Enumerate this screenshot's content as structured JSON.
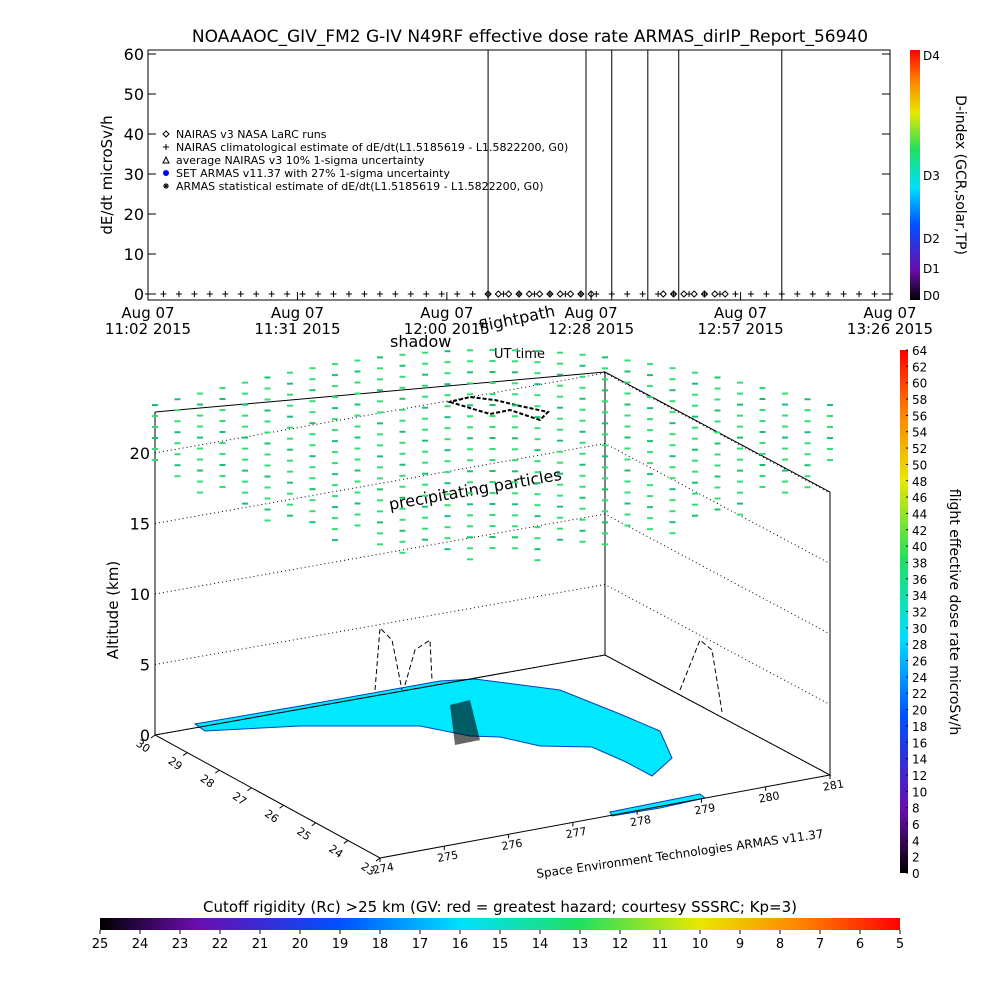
{
  "chart_data": [
    {
      "type": "line",
      "title": "NOAAAOC_GIV_FM2 G-IV    N49RF  effective dose rate ARMAS_dirIP_Report_56940",
      "ylabel": "dE/dt microSv/h",
      "ylim": [
        -1.5,
        61
      ],
      "yticks": [
        0,
        10,
        20,
        30,
        40,
        50,
        60
      ],
      "xlim": [
        0,
        144
      ],
      "xticks": [
        {
          "value": 0,
          "label": "Aug 07\n11:02 2015"
        },
        {
          "value": 29,
          "label": "Aug 07\n11:31 2015"
        },
        {
          "value": 58,
          "label": "Aug 07\n12:00 2015"
        },
        {
          "value": 86,
          "label": "Aug 07\n12:28 2015"
        },
        {
          "value": 115,
          "label": "Aug 07\n12:57 2015"
        },
        {
          "value": 144,
          "label": "Aug 07\n13:26 2015"
        }
      ],
      "vertical_lines": [
        66,
        85,
        90,
        97,
        103,
        123
      ],
      "series": [
        {
          "name": "NAIRAS v3 NASA LaRC runs",
          "marker": "diamond",
          "color": "#000000",
          "x": [
            66,
            68,
            70,
            72,
            74,
            76,
            78,
            80,
            82,
            84,
            86,
            100,
            102,
            104,
            106,
            108,
            110,
            112
          ],
          "values": [
            0,
            0,
            0,
            0,
            0,
            0,
            0,
            0,
            0,
            0,
            0,
            0,
            0,
            0,
            0,
            0,
            0,
            0
          ]
        },
        {
          "name": "NAIRAS climatological estimate of dE/dt(L1.5185619 - L1.5822200, G0)",
          "marker": "plus",
          "color": "#000000",
          "x": [
            0,
            3,
            6,
            9,
            12,
            15,
            18,
            21,
            24,
            27,
            30,
            33,
            36,
            39,
            42,
            45,
            48,
            51,
            54,
            57,
            60,
            63,
            66,
            69,
            72,
            75,
            78,
            81,
            84,
            87,
            90,
            93,
            96,
            99,
            102,
            105,
            108,
            111,
            114,
            117,
            120,
            123,
            126,
            129,
            132,
            135,
            138,
            141,
            144
          ],
          "values": [
            0,
            0,
            0,
            0,
            0,
            0,
            0,
            0,
            0,
            0,
            0,
            0,
            0,
            0,
            0,
            0,
            0,
            0,
            0,
            0,
            0,
            0,
            0,
            0,
            0,
            0,
            0,
            0,
            0,
            0,
            0,
            0,
            0,
            0,
            0,
            0,
            0,
            0,
            0,
            0,
            0,
            0,
            0,
            0,
            0,
            0,
            0,
            0,
            0
          ]
        },
        {
          "name": "average NAIRAS v3 10% 1-sigma uncertainty",
          "marker": "triangle",
          "color": "#000000",
          "x": [],
          "values": []
        },
        {
          "name": "SET ARMAS v11.37 with 27% 1-sigma uncertainty",
          "marker": "dot",
          "color": "#0000ff",
          "x": [],
          "values": []
        },
        {
          "name": "ARMAS statistical estimate of dE/dt(L1.5185619 - L1.5822200, G0)",
          "marker": "asterisk",
          "color": "#000000",
          "x": [],
          "values": []
        }
      ]
    },
    {
      "type": "colorbar",
      "label": "D-index (GCR,solar,TP)",
      "ticks": [
        "D4",
        "D3",
        "D2",
        "D1",
        "D0"
      ]
    },
    {
      "type": "scatter3d",
      "zlabel": "Altitude (km)",
      "zticks": [
        0,
        5,
        10,
        15,
        20
      ],
      "yticks": [
        30,
        29,
        28,
        27,
        26,
        25,
        24,
        23
      ],
      "xticks": [
        274,
        275,
        276,
        277,
        278,
        279,
        280,
        281
      ],
      "annotations": [
        "shadow",
        "flightpath",
        "UT time",
        "precipitating particles"
      ],
      "credit": "Space Environment Technologies ARMAS v11.37"
    },
    {
      "type": "colorbar",
      "label": "flight effective dose rate microSv/h",
      "lim": [
        0,
        64
      ],
      "ticks": [
        0,
        2,
        4,
        6,
        8,
        10,
        12,
        14,
        16,
        18,
        20,
        22,
        24,
        26,
        28,
        30,
        32,
        34,
        36,
        38,
        40,
        42,
        44,
        46,
        48,
        50,
        52,
        54,
        56,
        58,
        60,
        62,
        64
      ]
    },
    {
      "type": "colorbar",
      "title": "Cutoff rigidity (Rc) >25 km (GV: red = greatest hazard; courtesy SSSRC; Kp=3)",
      "lim": [
        25,
        5
      ],
      "ticks": [
        25,
        24,
        23,
        22,
        21,
        20,
        19,
        18,
        17,
        16,
        15,
        14,
        13,
        12,
        11,
        10,
        9,
        8,
        7,
        6,
        5
      ]
    }
  ]
}
